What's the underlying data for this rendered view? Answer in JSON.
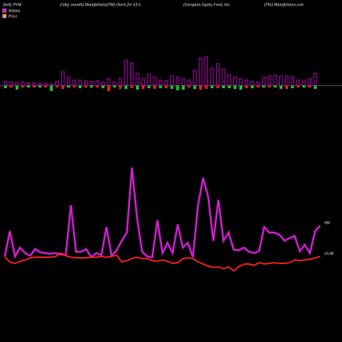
{
  "chart_data": [
    {
      "type": "bar",
      "title": "Daily PVM",
      "series": [
        {
          "color": "#cc00cc",
          "values": [
            6,
            5,
            4,
            5,
            4,
            4,
            3,
            3,
            2,
            6,
            20,
            12,
            8,
            8,
            7,
            6,
            7,
            5,
            10,
            5,
            10,
            37,
            33,
            18,
            10,
            17,
            12,
            8,
            7,
            14,
            12,
            10,
            8,
            22,
            40,
            42,
            25,
            32,
            24,
            16,
            12,
            10,
            8,
            6,
            5,
            12,
            14,
            15,
            14,
            14,
            13,
            8,
            8,
            10,
            18
          ]
        }
      ],
      "down_values": [
        4,
        3,
        6,
        3,
        3,
        3,
        3,
        3,
        8,
        3,
        5,
        3,
        3,
        4,
        3,
        3,
        3,
        4,
        8,
        3,
        5,
        5,
        4,
        6,
        5,
        4,
        5,
        4,
        4,
        5,
        7,
        6,
        3,
        5,
        6,
        5,
        4,
        4,
        4,
        4,
        5,
        6,
        4,
        4,
        3,
        3,
        3,
        3,
        5,
        5,
        4,
        3,
        3,
        3,
        5
      ],
      "down_colors": [
        "#22cc22",
        "#dd2222",
        "#22cc22",
        "#dd2222",
        "#22cc22",
        "#dd2222",
        "#22cc22",
        "#dd2222",
        "#22cc22",
        "#dd2222",
        "#dd2222",
        "#22cc22",
        "#dd2222",
        "#22cc22",
        "#dd2222",
        "#22cc22",
        "#dd2222",
        "#22cc22",
        "#ff2020",
        "#22cc22",
        "#dd2222",
        "#22cc22",
        "#dd2222",
        "#22cc22",
        "#ff2020",
        "#22cc22",
        "#dd2222",
        "#22cc22",
        "#dd2222",
        "#22cc22",
        "#22cc22",
        "#22cc22",
        "#dd2222",
        "#22cc22",
        "#ff2020",
        "#dd2222",
        "#22cc22",
        "#dd2222",
        "#22cc22",
        "#22cc22",
        "#22cc22",
        "#22cc22",
        "#dd2222",
        "#22cc22",
        "#dd2222",
        "#22cc22",
        "#dd2222",
        "#22cc22",
        "#22cc22",
        "#dd2222",
        "#22cc22",
        "#dd2222",
        "#22cc22",
        "#dd2222",
        "#22cc22"
      ],
      "ylim": [
        -10,
        45
      ]
    },
    {
      "type": "line",
      "subtitle": "(5day smooth) MunafaSutra(TM) charts for EEA",
      "company": "(European Equity Fund, Inc.",
      "site": "(The) MunafaSutra.com",
      "series": [
        {
          "name": "Volume",
          "color": "#dd22dd",
          "legend_color": "#cc00cc",
          "end_label": "0M",
          "values": [
            105,
            142,
            105,
            118,
            110,
            106,
            116,
            111,
            110,
            109,
            110,
            108,
            107,
            180,
            112,
            112,
            116,
            104,
            110,
            107,
            148,
            106,
            114,
            128,
            140,
            235,
            162,
            112,
            105,
            104,
            158,
            110,
            125,
            110,
            152,
            118,
            125,
            104,
            180,
            220,
            192,
            128,
            188,
            128,
            140,
            115,
            114,
            118,
            112,
            110,
            113,
            148,
            140,
            140,
            137,
            128,
            132,
            135,
            113,
            122,
            110,
            142,
            150
          ]
        },
        {
          "name": "Price",
          "color": "#ff2020",
          "legend_color": "#ff8844",
          "end_label": "10.98",
          "values": [
            104,
            97,
            95,
            98,
            100,
            103,
            104,
            104,
            104,
            104,
            105,
            110,
            106,
            104,
            103,
            103,
            103,
            104,
            104,
            105,
            104,
            105,
            107,
            97,
            99,
            102,
            104,
            102,
            102,
            99,
            98,
            100,
            98,
            95,
            96,
            102,
            103,
            102,
            97,
            94,
            91,
            89,
            90,
            87,
            90,
            84,
            90,
            94,
            94,
            92,
            96,
            94,
            95,
            96,
            95,
            95,
            96,
            100,
            99,
            100,
            101,
            103,
            105
          ]
        }
      ],
      "ylim": [
        0,
        240
      ]
    }
  ]
}
